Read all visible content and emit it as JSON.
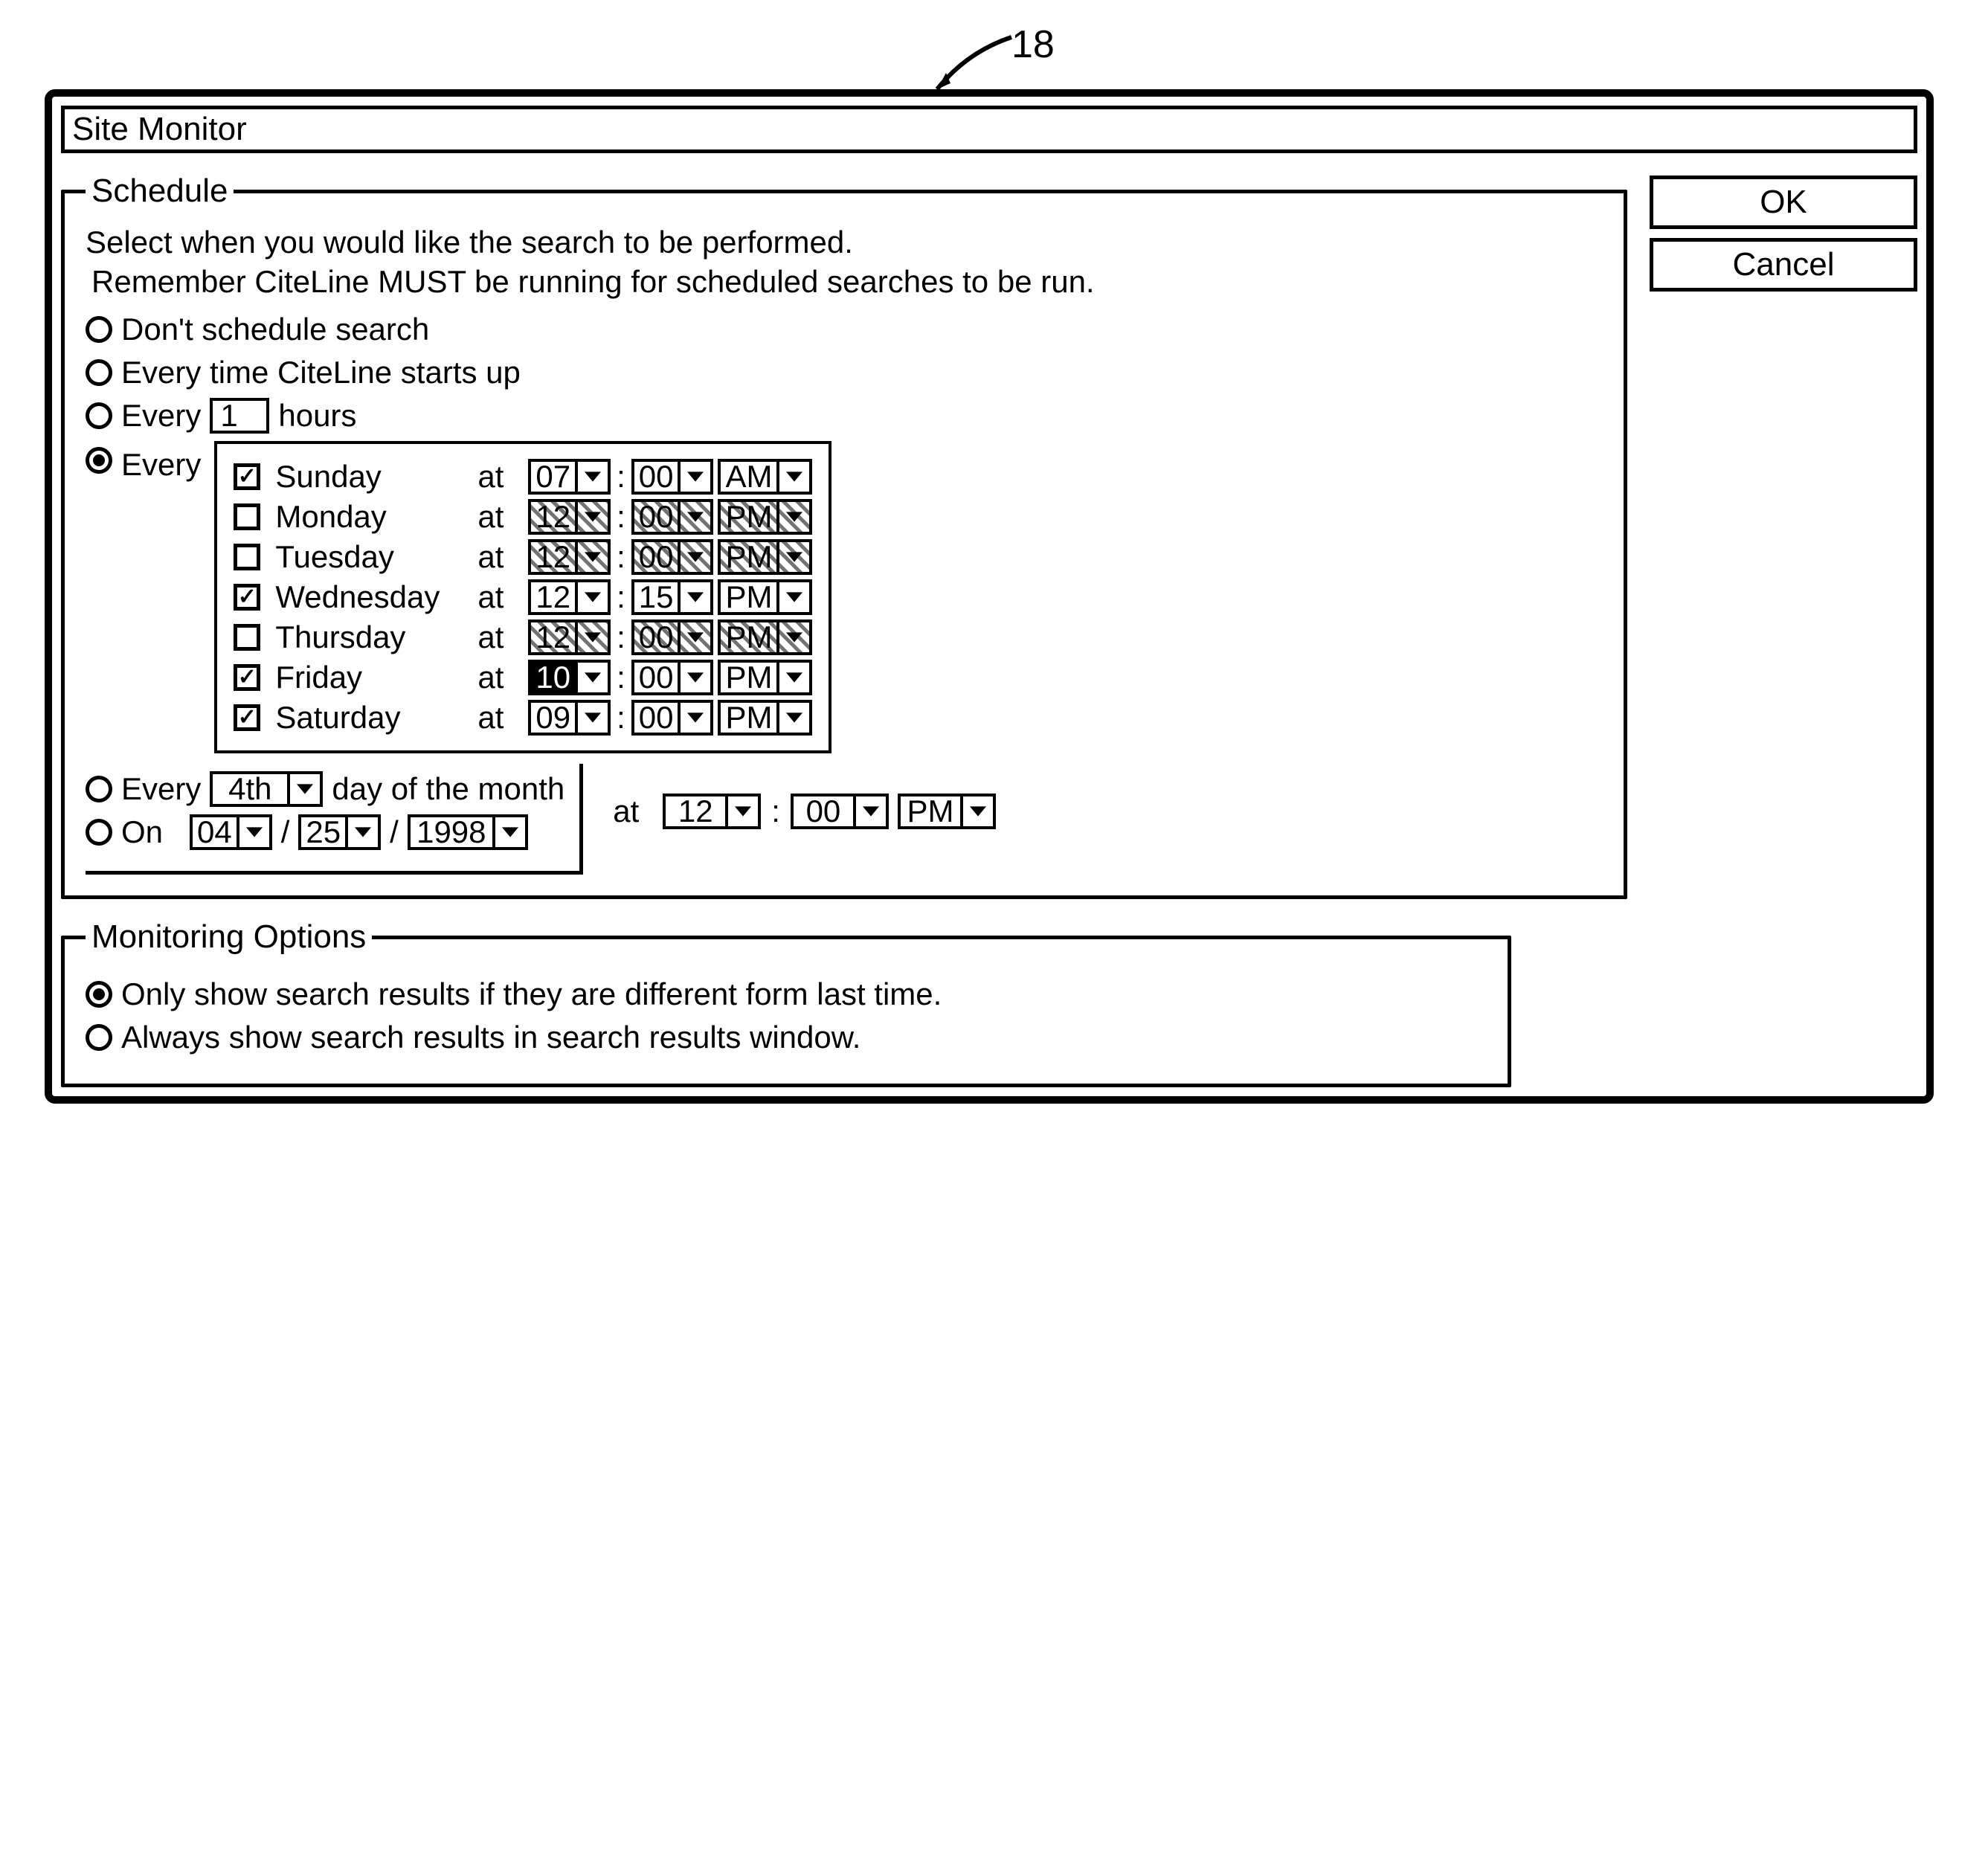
{
  "figure_ref": "18",
  "window_title": "Site Monitor",
  "buttons": {
    "ok": "OK",
    "cancel": "Cancel"
  },
  "schedule": {
    "legend": "Schedule",
    "intro1": "Select when you would like the search to be performed.",
    "intro2": "Remember CiteLine MUST be running for scheduled searches to be run.",
    "opt_none": "Don't schedule search",
    "opt_startup": "Every time CiteLine starts up",
    "opt_hours_prefix": "Every",
    "opt_hours_value": "1",
    "opt_hours_suffix": "hours",
    "opt_weekly": "Every",
    "at_label": "at",
    "days": [
      {
        "name": "Sunday",
        "checked": true,
        "hour": "07",
        "min": "00",
        "ampm": "AM",
        "enabled": true,
        "highlight": false
      },
      {
        "name": "Monday",
        "checked": false,
        "hour": "12",
        "min": "00",
        "ampm": "PM",
        "enabled": false,
        "highlight": false
      },
      {
        "name": "Tuesday",
        "checked": false,
        "hour": "12",
        "min": "00",
        "ampm": "PM",
        "enabled": false,
        "highlight": false
      },
      {
        "name": "Wednesday",
        "checked": true,
        "hour": "12",
        "min": "15",
        "ampm": "PM",
        "enabled": true,
        "highlight": false
      },
      {
        "name": "Thursday",
        "checked": false,
        "hour": "12",
        "min": "00",
        "ampm": "PM",
        "enabled": false,
        "highlight": false
      },
      {
        "name": "Friday",
        "checked": true,
        "hour": "10",
        "min": "00",
        "ampm": "PM",
        "enabled": true,
        "highlight": true
      },
      {
        "name": "Saturday",
        "checked": true,
        "hour": "09",
        "min": "00",
        "ampm": "PM",
        "enabled": true,
        "highlight": false
      }
    ],
    "opt_monthday_prefix": "Every",
    "opt_monthday_value": "4th",
    "opt_monthday_suffix": "day of the month",
    "opt_on": "On",
    "date_month": "04",
    "date_day": "25",
    "date_year": "1998",
    "bottom_at": "at",
    "bottom_hour": "12",
    "bottom_min": "00",
    "bottom_ampm": "PM"
  },
  "monitor": {
    "legend": "Monitoring Options",
    "opt_diff": "Only show search results if they are different form last time.",
    "opt_always": "Always show search results in search results window."
  }
}
